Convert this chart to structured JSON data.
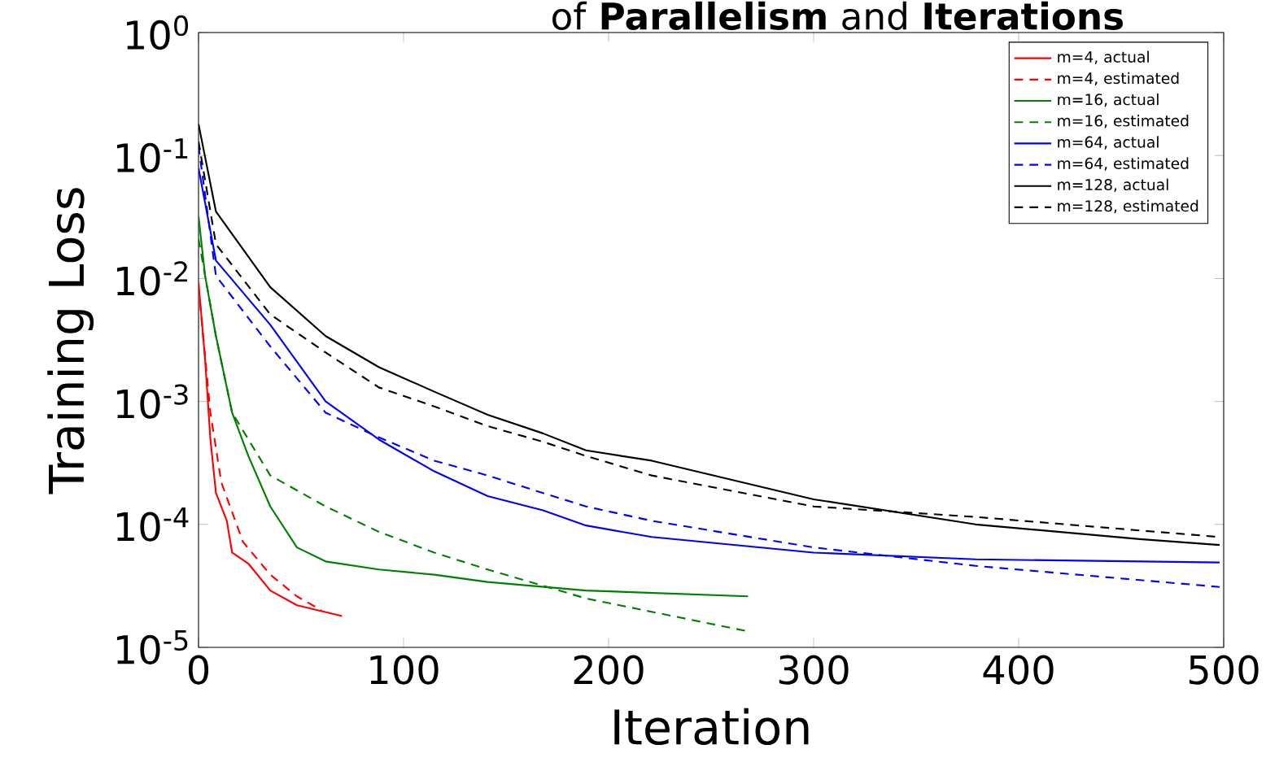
{
  "chart_data": {
    "type": "line",
    "title": "of **Parallelism** and **Iterations**",
    "xlabel": "Iteration",
    "ylabel": "Training Loss",
    "log": "y",
    "xlim": [
      0,
      500
    ],
    "ylim": [
      1e-05,
      1
    ],
    "xticks": [
      0,
      100,
      200,
      300,
      400,
      500
    ],
    "yticks": [
      {
        "value": 1e-05,
        "label": "10$^{-5}$"
      },
      {
        "value": 0.0001,
        "label": "10$^{-4}$"
      },
      {
        "value": 0.001,
        "label": "10$^{-3}$"
      },
      {
        "value": 0.01,
        "label": "10$^{-2}$"
      },
      {
        "value": 0.1,
        "label": "10$^{-1}$"
      },
      {
        "value": 1,
        "label": "10$^{0}$"
      }
    ],
    "legend": "top right",
    "grid": false,
    "marker": "none",
    "series": [
      {
        "name": "m=4, actual",
        "color": "#ff0000",
        "line_style": "solid",
        "x": [
          0,
          3.2,
          5.8,
          8.5,
          13.8,
          16.4,
          24.3,
          35,
          48,
          70
        ],
        "values": [
          0.0093,
          0.0022,
          0.00049,
          0.00018,
          0.000107,
          5.9e-05,
          4.8e-05,
          2.9e-05,
          2.2e-05,
          1.8e-05
        ]
      },
      {
        "name": "m=4, estimated",
        "color": "#ff0000",
        "line_style": "dashed",
        "x": [
          0,
          5.8,
          11.1,
          21.7,
          35,
          48,
          60
        ],
        "values": [
          0.0085,
          0.00081,
          0.00022,
          7.2e-05,
          3.9e-05,
          2.6e-05,
          2e-05
        ]
      },
      {
        "name": "m=16, actual",
        "color": "#008000",
        "line_style": "solid",
        "x": [
          0,
          3.2,
          8.5,
          16.4,
          24.3,
          35,
          48,
          62,
          88,
          115,
          141,
          189,
          268
        ],
        "values": [
          0.032,
          0.0105,
          0.0034,
          0.00081,
          0.00036,
          0.00014,
          6.5e-05,
          5e-05,
          4.3e-05,
          3.9e-05,
          3.4e-05,
          2.9e-05,
          2.6e-05
        ]
      },
      {
        "name": "m=16, estimated",
        "color": "#008000",
        "line_style": "dashed",
        "x": [
          0,
          8.5,
          16.4,
          35,
          62,
          88,
          115,
          141,
          189,
          268
        ],
        "values": [
          0.021,
          0.0034,
          0.00081,
          0.00025,
          0.00014,
          8.7e-05,
          5.9e-05,
          4.3e-05,
          2.5e-05,
          1.35e-05
        ]
      },
      {
        "name": "m=64, actual",
        "color": "#0000ff",
        "line_style": "solid",
        "x": [
          0,
          8.5,
          35,
          62,
          88,
          115,
          141,
          168,
          189,
          221,
          300,
          379,
          498
        ],
        "values": [
          0.079,
          0.014,
          0.0042,
          0.001,
          0.00049,
          0.00027,
          0.00017,
          0.00013,
          9.8e-05,
          7.9e-05,
          5.9e-05,
          5.2e-05,
          4.9e-05
        ]
      },
      {
        "name": "m=64, estimated",
        "color": "#0000ff",
        "line_style": "dashed",
        "x": [
          0,
          8.5,
          35,
          62,
          88,
          115,
          141,
          168,
          189,
          221,
          300,
          379,
          498
        ],
        "values": [
          0.12,
          0.0105,
          0.0028,
          0.00081,
          0.00051,
          0.00033,
          0.00025,
          0.00018,
          0.00014,
          0.000107,
          6.5e-05,
          4.6e-05,
          3.1e-05
        ]
      },
      {
        "name": "m=128, actual",
        "color": "#000000",
        "line_style": "solid",
        "x": [
          0,
          8.5,
          35,
          62,
          88,
          115,
          141,
          168,
          189,
          221,
          300,
          379,
          459,
          498
        ],
        "values": [
          0.18,
          0.035,
          0.0085,
          0.0034,
          0.0019,
          0.0012,
          0.00078,
          0.00055,
          0.0004,
          0.00033,
          0.00016,
          0.0001,
          7.6e-05,
          6.8e-05
        ]
      },
      {
        "name": "m=128, estimated",
        "color": "#000000",
        "line_style": "dashed",
        "x": [
          0,
          8.5,
          35,
          62,
          88,
          115,
          141,
          168,
          189,
          221,
          300,
          379,
          498
        ],
        "values": [
          0.13,
          0.019,
          0.0051,
          0.0025,
          0.0013,
          0.00091,
          0.00063,
          0.00047,
          0.00036,
          0.00025,
          0.00014,
          0.000115,
          7.9e-05
        ]
      }
    ]
  }
}
